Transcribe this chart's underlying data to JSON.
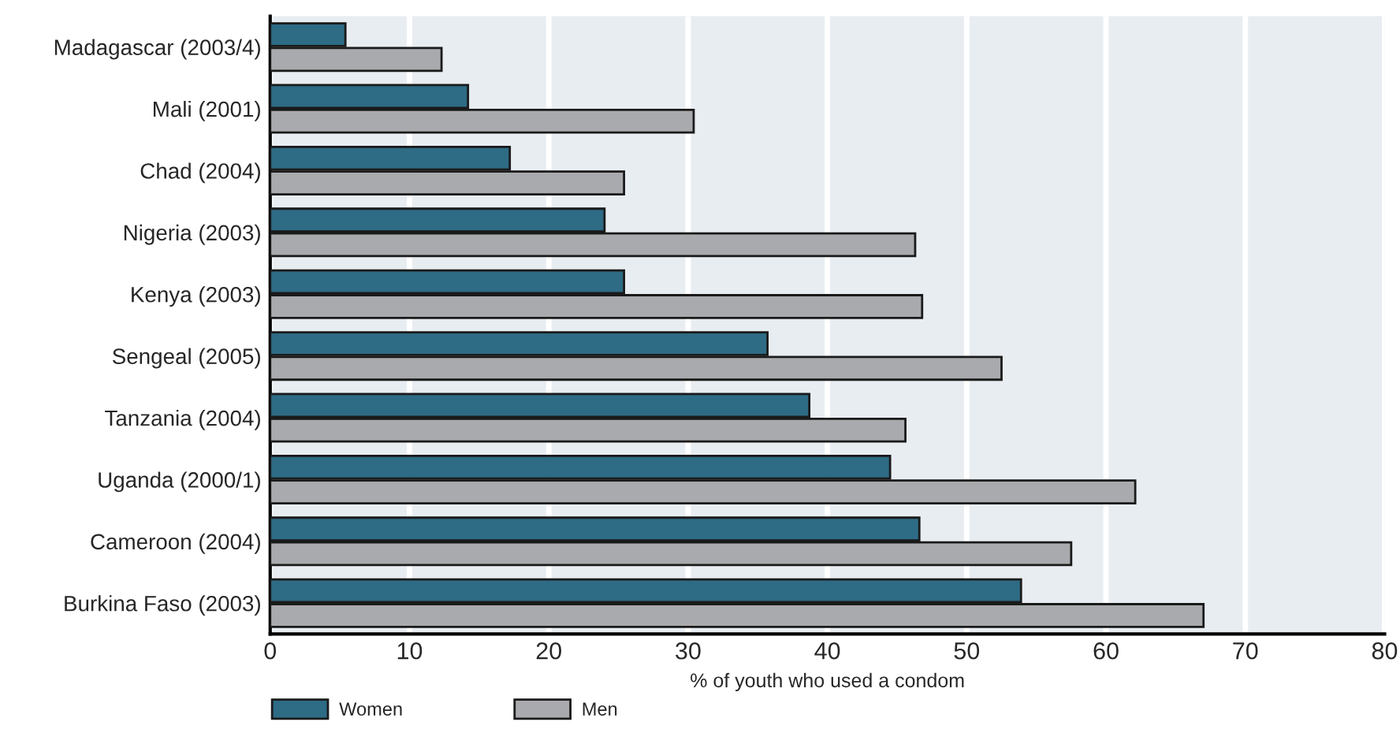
{
  "chart_data": {
    "type": "bar",
    "orientation": "horizontal",
    "xlabel": "% of youth who used a condom",
    "categories": [
      "Madagascar (2003/4)",
      "Mali (2001)",
      "Chad (2004)",
      "Nigeria (2003)",
      "Kenya (2003)",
      "Sengeal (2005)",
      "Tanzania (2004)",
      "Uganda (2000/1)",
      "Cameroon (2004)",
      "Burkina Faso (2003)"
    ],
    "series": [
      {
        "name": "Women",
        "color": "#2e6b85",
        "values": [
          5.4,
          14.2,
          17.2,
          24.0,
          25.4,
          35.7,
          38.7,
          44.5,
          46.6,
          53.9
        ]
      },
      {
        "name": "Men",
        "color": "#a9aaad",
        "values": [
          12.3,
          30.4,
          25.4,
          46.3,
          46.8,
          52.5,
          45.6,
          62.1,
          57.5,
          67.0
        ]
      }
    ],
    "xlim": [
      0,
      80
    ],
    "xticks": [
      0,
      10,
      20,
      30,
      40,
      50,
      60,
      70,
      80
    ],
    "grid": "x",
    "legend": "bottom left"
  }
}
